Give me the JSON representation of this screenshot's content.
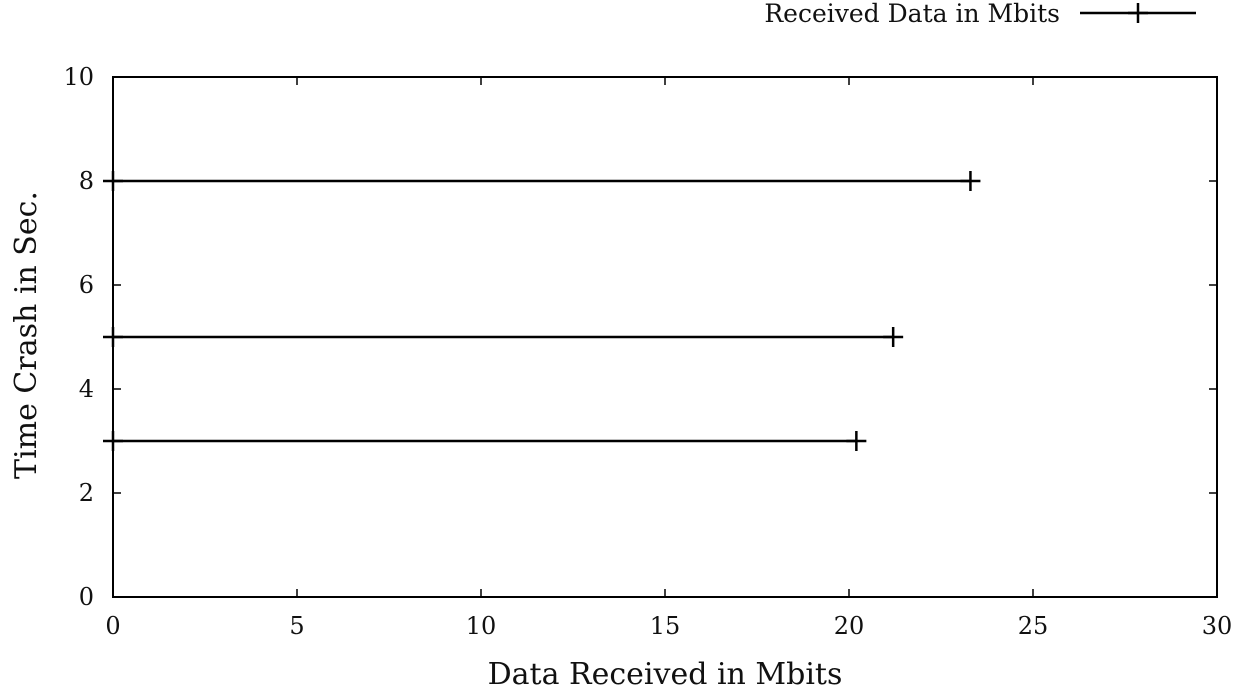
{
  "chart_data": {
    "type": "line",
    "xlabel": "Data Received in Mbits",
    "ylabel": "Time Crash in Sec.",
    "xlim": [
      0,
      30
    ],
    "ylim": [
      0,
      10
    ],
    "xticks": [
      0,
      5,
      10,
      15,
      20,
      25,
      30
    ],
    "yticks": [
      0,
      2,
      4,
      6,
      8,
      10
    ],
    "grid": false,
    "legend_position": "top-right",
    "series": [
      {
        "name": "Received Data in Mbits",
        "color": "#000000",
        "marker": "plus",
        "segments": [
          {
            "x": [
              0,
              20.2
            ],
            "y": [
              3,
              3
            ]
          },
          {
            "x": [
              0,
              21.2
            ],
            "y": [
              5,
              5
            ]
          },
          {
            "x": [
              0,
              23.3
            ],
            "y": [
              8,
              8
            ]
          }
        ]
      }
    ]
  }
}
